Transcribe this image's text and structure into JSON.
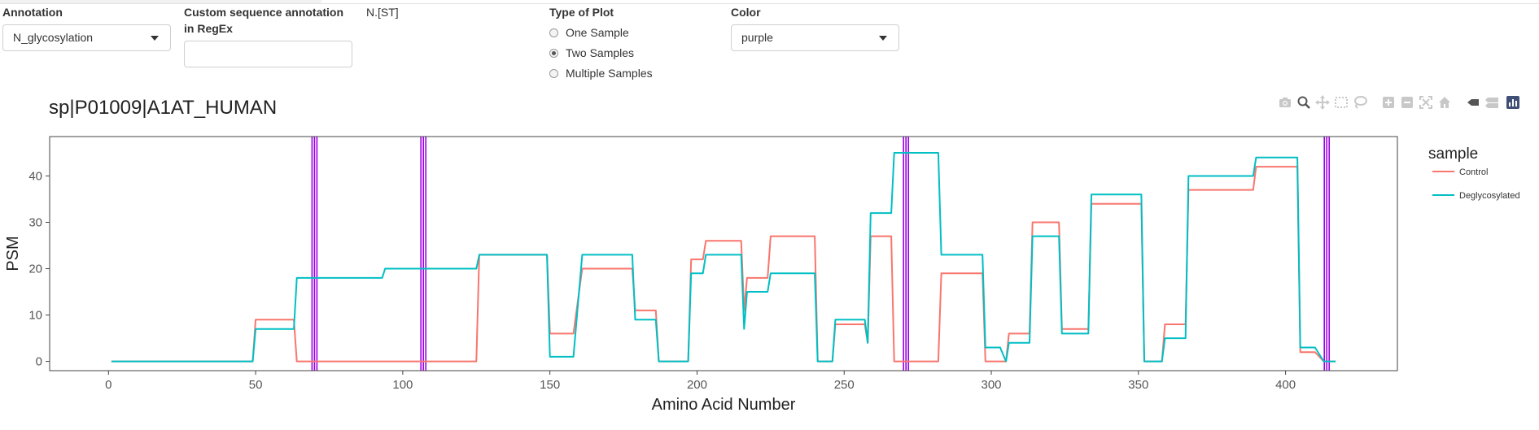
{
  "controls": {
    "annotation": {
      "label": "Annotation",
      "value": "N_glycosylation"
    },
    "custom_seq": {
      "label_line1": "Custom sequence annotation",
      "label_line2": "in RegEx",
      "value": "",
      "example": "N.[ST]"
    },
    "plot_type": {
      "label": "Type of Plot",
      "options": [
        "One Sample",
        "Two Samples",
        "Multiple Samples"
      ],
      "selected": "Two Samples"
    },
    "color": {
      "label": "Color",
      "value": "purple"
    }
  },
  "plot_title": "sp|P01009|A1AT_HUMAN",
  "modebar": {
    "icons": [
      "camera-icon",
      "zoom-icon",
      "pan-icon",
      "box-select-icon",
      "lasso-icon",
      "zoom-in-icon",
      "zoom-out-icon",
      "autoscale-icon",
      "reset-axes-icon",
      "spike-lines-icon",
      "hover-closest-icon",
      "hover-compare-icon",
      "plotly-logo-icon"
    ]
  },
  "chart_data": {
    "type": "line",
    "title": "sp|P01009|A1AT_HUMAN",
    "xlabel": "Amino Acid Number",
    "ylabel": "PSM",
    "xlim": [
      -20,
      438
    ],
    "ylim": [
      -2,
      48.5
    ],
    "xticks": [
      0,
      50,
      100,
      150,
      200,
      250,
      300,
      350,
      400
    ],
    "yticks": [
      0,
      10,
      20,
      30,
      40
    ],
    "grid": false,
    "legend": {
      "title": "sample",
      "placement": "right"
    },
    "annotation_color": "#9b00e6",
    "annotation_sites": [
      70,
      107,
      271,
      414
    ],
    "series": [
      {
        "name": "Control",
        "color": "#F8766D",
        "points": [
          [
            1,
            0
          ],
          [
            49,
            0
          ],
          [
            50,
            9
          ],
          [
            63,
            9
          ],
          [
            64,
            0
          ],
          [
            125,
            0
          ],
          [
            126,
            23
          ],
          [
            149,
            23
          ],
          [
            150,
            6
          ],
          [
            158,
            6
          ],
          [
            161,
            20
          ],
          [
            178,
            20
          ],
          [
            179,
            11
          ],
          [
            186,
            11
          ],
          [
            187,
            0
          ],
          [
            197,
            0
          ],
          [
            198,
            22
          ],
          [
            202,
            22
          ],
          [
            203,
            26
          ],
          [
            215,
            26
          ],
          [
            216,
            11
          ],
          [
            217,
            18
          ],
          [
            224,
            18
          ],
          [
            225,
            27
          ],
          [
            240,
            27
          ],
          [
            241,
            0
          ],
          [
            246,
            0
          ],
          [
            247,
            8
          ],
          [
            257,
            8
          ],
          [
            258,
            4
          ],
          [
            259,
            27
          ],
          [
            266,
            27
          ],
          [
            267,
            0
          ],
          [
            282,
            0
          ],
          [
            283,
            19
          ],
          [
            297,
            19
          ],
          [
            298,
            0
          ],
          [
            305,
            0
          ],
          [
            306,
            6
          ],
          [
            313,
            6
          ],
          [
            314,
            30
          ],
          [
            323,
            30
          ],
          [
            324,
            7
          ],
          [
            333,
            7
          ],
          [
            334,
            34
          ],
          [
            351,
            34
          ],
          [
            352,
            0
          ],
          [
            358,
            0
          ],
          [
            359,
            8
          ],
          [
            366,
            8
          ],
          [
            367,
            37
          ],
          [
            389,
            37
          ],
          [
            390,
            42
          ],
          [
            404,
            42
          ],
          [
            405,
            2
          ],
          [
            410,
            2
          ],
          [
            413,
            0
          ],
          [
            417,
            0
          ]
        ]
      },
      {
        "name": "Deglycosylated",
        "color": "#00BFC4",
        "points": [
          [
            1,
            0
          ],
          [
            49,
            0
          ],
          [
            50,
            7
          ],
          [
            63,
            7
          ],
          [
            64,
            18
          ],
          [
            93,
            18
          ],
          [
            94,
            20
          ],
          [
            125,
            20
          ],
          [
            126,
            23
          ],
          [
            149,
            23
          ],
          [
            150,
            1
          ],
          [
            158,
            1
          ],
          [
            161,
            23
          ],
          [
            178,
            23
          ],
          [
            179,
            9
          ],
          [
            186,
            9
          ],
          [
            187,
            0
          ],
          [
            197,
            0
          ],
          [
            198,
            19
          ],
          [
            202,
            19
          ],
          [
            203,
            23
          ],
          [
            215,
            23
          ],
          [
            216,
            7
          ],
          [
            217,
            15
          ],
          [
            224,
            15
          ],
          [
            225,
            19
          ],
          [
            240,
            19
          ],
          [
            241,
            0
          ],
          [
            246,
            0
          ],
          [
            247,
            9
          ],
          [
            257,
            9
          ],
          [
            258,
            4
          ],
          [
            259,
            32
          ],
          [
            266,
            32
          ],
          [
            267,
            45
          ],
          [
            282,
            45
          ],
          [
            283,
            23
          ],
          [
            297,
            23
          ],
          [
            298,
            3
          ],
          [
            303,
            3
          ],
          [
            305,
            0
          ],
          [
            306,
            4
          ],
          [
            313,
            4
          ],
          [
            314,
            27
          ],
          [
            323,
            27
          ],
          [
            324,
            6
          ],
          [
            333,
            6
          ],
          [
            334,
            36
          ],
          [
            351,
            36
          ],
          [
            352,
            0
          ],
          [
            358,
            0
          ],
          [
            359,
            5
          ],
          [
            366,
            5
          ],
          [
            367,
            40
          ],
          [
            389,
            40
          ],
          [
            390,
            44
          ],
          [
            404,
            44
          ],
          [
            405,
            3
          ],
          [
            410,
            3
          ],
          [
            413,
            0
          ],
          [
            417,
            0
          ]
        ]
      }
    ]
  }
}
